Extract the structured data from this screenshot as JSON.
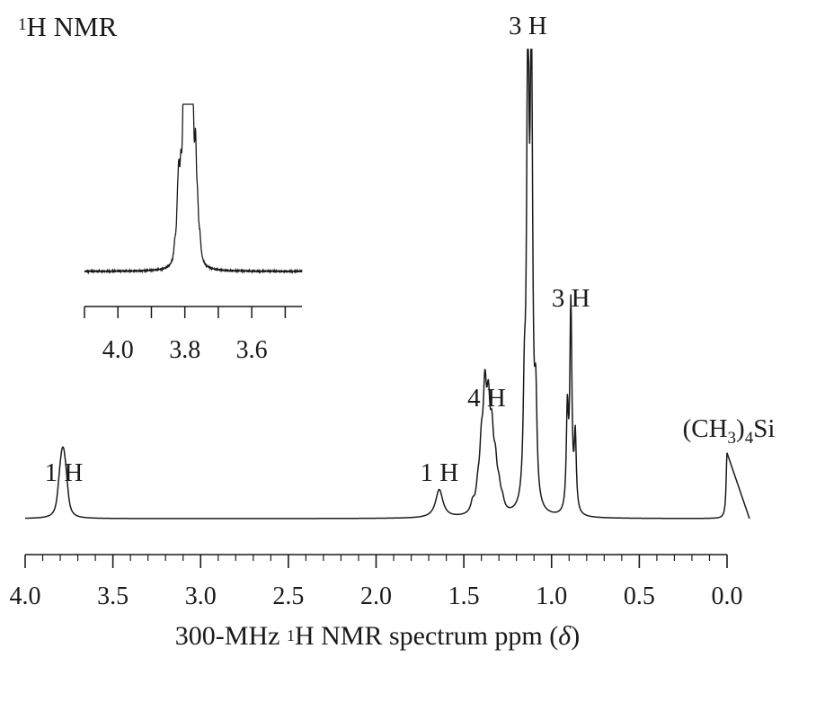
{
  "chart_data": [
    {
      "type": "line",
      "title": {
        "sup": "1",
        "text": "H NMR"
      },
      "xlabel": {
        "pre": "300-MHz ",
        "sup": "1",
        "post": "H NMR spectrum ppm (",
        "symbol": "δ",
        "close": ")"
      },
      "ylabel": "",
      "x_reversed": true,
      "xlim": [
        4.0,
        0.0
      ],
      "x_ticks": [
        4.0,
        3.5,
        3.0,
        2.5,
        2.0,
        1.5,
        1.0,
        0.5,
        0.0
      ],
      "x_tick_labels": [
        "4.0",
        "3.5",
        "3.0",
        "2.5",
        "2.0",
        "1.5",
        "1.0",
        "0.5",
        "0.0"
      ],
      "ylim": [
        0,
        1
      ],
      "grid": false,
      "peaks": [
        {
          "center": 3.78,
          "height": 0.064,
          "width": 0.012,
          "components": [
            {
              "x": 3.81,
              "h": 0.022
            },
            {
              "x": 3.8,
              "h": 0.045
            },
            {
              "x": 3.79,
              "h": 0.064
            },
            {
              "x": 3.78,
              "h": 0.064
            },
            {
              "x": 3.77,
              "h": 0.045
            },
            {
              "x": 3.76,
              "h": 0.022
            }
          ]
        },
        {
          "center": 1.64,
          "height": 0.06,
          "width": 0.025,
          "components": [
            {
              "x": 1.64,
              "h": 0.06
            }
          ]
        },
        {
          "center": 1.37,
          "height": 0.22,
          "width": 0.012,
          "components": [
            {
              "x": 1.45,
              "h": 0.02
            },
            {
              "x": 1.42,
              "h": 0.04
            },
            {
              "x": 1.4,
              "h": 0.11
            },
            {
              "x": 1.38,
              "h": 0.22
            },
            {
              "x": 1.36,
              "h": 0.18
            },
            {
              "x": 1.34,
              "h": 0.13
            },
            {
              "x": 1.32,
              "h": 0.08
            },
            {
              "x": 1.3,
              "h": 0.04
            },
            {
              "x": 1.28,
              "h": 0.02
            }
          ]
        },
        {
          "center": 1.135,
          "height": 1.0,
          "width": 0.008,
          "components": [
            {
              "x": 1.155,
              "h": 0.2
            },
            {
              "x": 1.135,
              "h": 1.0
            },
            {
              "x": 1.115,
              "h": 0.98
            },
            {
              "x": 1.09,
              "h": 0.2
            }
          ]
        },
        {
          "center": 0.89,
          "height": 0.44,
          "width": 0.007,
          "components": [
            {
              "x": 0.91,
              "h": 0.21
            },
            {
              "x": 0.89,
              "h": 0.44
            },
            {
              "x": 0.865,
              "h": 0.16
            }
          ]
        },
        {
          "center": 0.0,
          "height": 0.14,
          "width": 0.006,
          "components": [
            {
              "x": 0.0,
              "h": 0.14
            }
          ]
        }
      ],
      "annotations": [
        {
          "text": "1 H",
          "x": 3.78
        },
        {
          "text": "1 H",
          "x": 1.64
        },
        {
          "text": "4 H",
          "x": 1.37
        },
        {
          "text": "3 H",
          "x": 1.135
        },
        {
          "text": "3 H",
          "x": 0.89
        },
        {
          "text_parts": [
            "(CH",
            "3",
            ")",
            "4",
            "Si"
          ],
          "x": 0.0
        }
      ]
    },
    {
      "type": "line",
      "title": "",
      "x_reversed": true,
      "xlim": [
        4.1,
        3.45
      ],
      "x_ticks": [
        4.1,
        4.0,
        3.9,
        3.8,
        3.7,
        3.6,
        3.5
      ],
      "x_tick_labels": [
        "4.0",
        "3.8",
        "3.6"
      ],
      "x_tick_label_values": [
        4.0,
        3.8,
        3.6
      ],
      "ylim": [
        0,
        1
      ],
      "grid": false,
      "components": [
        {
          "x": 3.83,
          "h": 0.08
        },
        {
          "x": 3.822,
          "h": 0.2
        },
        {
          "x": 3.818,
          "h": 0.38
        },
        {
          "x": 3.812,
          "h": 0.36
        },
        {
          "x": 3.805,
          "h": 0.6
        },
        {
          "x": 3.8,
          "h": 0.74
        },
        {
          "x": 3.794,
          "h": 0.55
        },
        {
          "x": 3.79,
          "h": 0.58
        },
        {
          "x": 3.785,
          "h": 0.92
        },
        {
          "x": 3.78,
          "h": 0.78
        },
        {
          "x": 3.775,
          "h": 0.48
        },
        {
          "x": 3.768,
          "h": 0.55
        },
        {
          "x": 3.762,
          "h": 0.22
        },
        {
          "x": 3.755,
          "h": 0.1
        }
      ]
    }
  ]
}
